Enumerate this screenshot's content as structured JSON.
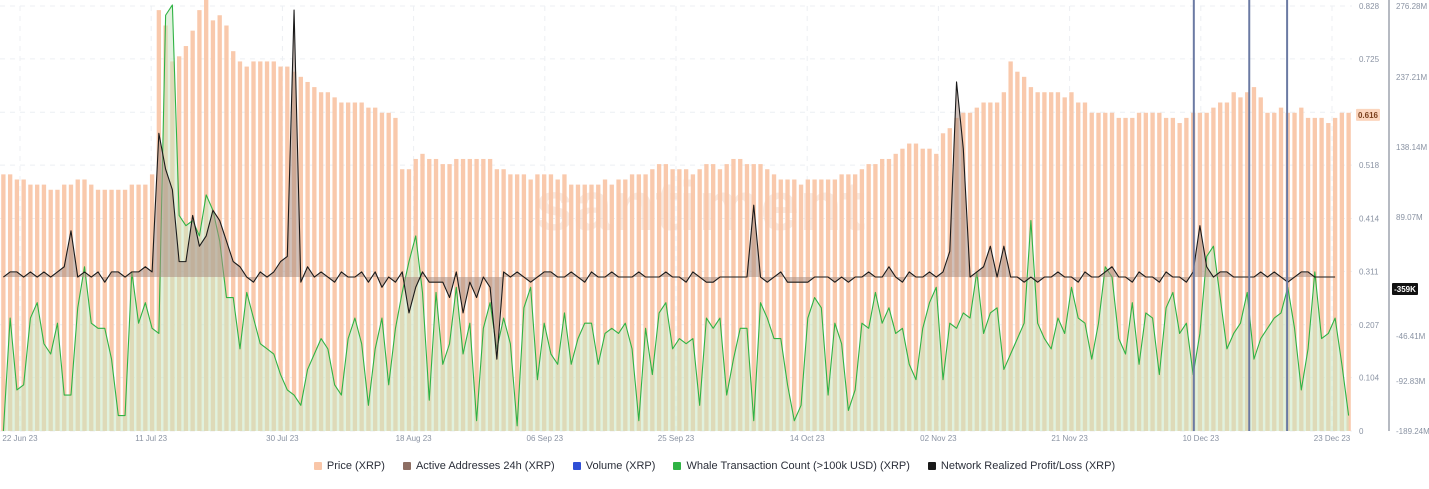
{
  "chart_data": {
    "type": "bar",
    "watermark": "santiment",
    "x_tick_labels": [
      "22 Jun 23",
      "11 Jul 23",
      "30 Jul 23",
      "18 Aug 23",
      "06 Sep 23",
      "25 Sep 23",
      "14 Oct 23",
      "02 Nov 23",
      "21 Nov 23",
      "10 Dec 23",
      "23 Dec 23"
    ],
    "price_axis": {
      "ticks": [
        "0",
        "0.104",
        "0.207",
        "0.311",
        "0.414",
        "0.518",
        "0.621",
        "0.725",
        "0.828"
      ],
      "ylim": [
        0,
        0.828
      ]
    },
    "right_axis": {
      "ticks": [
        "-189.24M",
        "-92.83M",
        "-46.41M",
        "89.07M",
        "138.14M",
        "237.21M",
        "276.28M"
      ]
    },
    "price_current_label": "0.616",
    "profit_loss_current_label": "-359K",
    "legend_placement": "bottom-center",
    "grid": true,
    "colors": {
      "price": "#f9c6a8",
      "active_addresses": "#8d6e63",
      "volume": "#2f4fd6",
      "whale": "#2fb344",
      "profit_loss": "#1a1a1a",
      "event_line": "#6b7aa3"
    },
    "legend": [
      {
        "key": "price",
        "label": "Price (XRP)"
      },
      {
        "key": "active_addresses",
        "label": "Active Addresses 24h (XRP)"
      },
      {
        "key": "volume",
        "label": "Volume (XRP)"
      },
      {
        "key": "whale",
        "label": "Whale Transaction Count (>100k USD) (XRP)"
      },
      {
        "key": "profit_loss",
        "label": "Network Realized Profit/Loss (XRP)"
      }
    ],
    "series": [
      {
        "name": "Price (XRP)",
        "type": "bar",
        "values": [
          0.5,
          0.5,
          0.49,
          0.49,
          0.48,
          0.48,
          0.48,
          0.47,
          0.47,
          0.48,
          0.48,
          0.49,
          0.49,
          0.48,
          0.47,
          0.47,
          0.47,
          0.47,
          0.47,
          0.48,
          0.48,
          0.48,
          0.5,
          0.82,
          0.79,
          0.72,
          0.73,
          0.75,
          0.78,
          0.82,
          0.84,
          0.8,
          0.81,
          0.79,
          0.74,
          0.72,
          0.71,
          0.72,
          0.72,
          0.72,
          0.72,
          0.71,
          0.71,
          0.7,
          0.69,
          0.68,
          0.67,
          0.66,
          0.66,
          0.65,
          0.64,
          0.64,
          0.64,
          0.64,
          0.63,
          0.63,
          0.62,
          0.62,
          0.61,
          0.51,
          0.51,
          0.53,
          0.54,
          0.53,
          0.53,
          0.52,
          0.52,
          0.53,
          0.53,
          0.53,
          0.53,
          0.53,
          0.53,
          0.51,
          0.51,
          0.5,
          0.5,
          0.5,
          0.49,
          0.5,
          0.5,
          0.5,
          0.49,
          0.5,
          0.48,
          0.48,
          0.48,
          0.48,
          0.48,
          0.49,
          0.48,
          0.49,
          0.49,
          0.5,
          0.5,
          0.5,
          0.51,
          0.52,
          0.52,
          0.51,
          0.51,
          0.51,
          0.5,
          0.51,
          0.52,
          0.52,
          0.51,
          0.52,
          0.53,
          0.53,
          0.52,
          0.52,
          0.52,
          0.51,
          0.5,
          0.49,
          0.49,
          0.49,
          0.48,
          0.49,
          0.49,
          0.49,
          0.49,
          0.49,
          0.5,
          0.5,
          0.5,
          0.51,
          0.52,
          0.52,
          0.53,
          0.53,
          0.54,
          0.55,
          0.56,
          0.56,
          0.55,
          0.55,
          0.54,
          0.58,
          0.59,
          0.61,
          0.62,
          0.62,
          0.63,
          0.64,
          0.64,
          0.64,
          0.66,
          0.72,
          0.7,
          0.69,
          0.67,
          0.66,
          0.66,
          0.66,
          0.66,
          0.65,
          0.66,
          0.64,
          0.64,
          0.62,
          0.62,
          0.62,
          0.62,
          0.61,
          0.61,
          0.61,
          0.62,
          0.62,
          0.62,
          0.62,
          0.61,
          0.61,
          0.6,
          0.61,
          0.62,
          0.62,
          0.62,
          0.63,
          0.64,
          0.64,
          0.66,
          0.65,
          0.66,
          0.67,
          0.65,
          0.62,
          0.62,
          0.63,
          0.62,
          0.62,
          0.63,
          0.61,
          0.61,
          0.61,
          0.6,
          0.61,
          0.62,
          0.62
        ],
        "ylim": [
          0,
          0.828
        ]
      },
      {
        "name": "Whale Transaction Count (>100k USD) (XRP)",
        "type": "line",
        "values": [
          0,
          0.22,
          0.08,
          0.09,
          0.22,
          0.25,
          0.17,
          0.15,
          0.21,
          0.07,
          0.07,
          0.24,
          0.32,
          0.21,
          0.2,
          0.2,
          0.14,
          0.03,
          0.03,
          0.31,
          0.21,
          0.25,
          0.2,
          0.19,
          0.81,
          0.83,
          0.42,
          0.4,
          0.41,
          0.38,
          0.46,
          0.43,
          0.37,
          0.26,
          0.26,
          0.16,
          0.27,
          0.22,
          0.17,
          0.16,
          0.15,
          0.11,
          0.08,
          0.07,
          0.05,
          0.12,
          0.15,
          0.18,
          0.16,
          0.09,
          0.07,
          0.18,
          0.22,
          0.17,
          0.05,
          0.16,
          0.22,
          0.09,
          0.2,
          0.27,
          0.33,
          0.38,
          0.27,
          0.06,
          0.27,
          0.13,
          0.17,
          0.28,
          0.15,
          0.21,
          0.02,
          0.2,
          0.25,
          0.16,
          0.22,
          0.17,
          0.01,
          0.24,
          0.28,
          0.1,
          0.21,
          0.15,
          0.13,
          0.23,
          0.13,
          0.18,
          0.21,
          0.21,
          0.13,
          0.19,
          0.2,
          0.19,
          0.21,
          0.16,
          0.02,
          0.2,
          0.11,
          0.23,
          0.25,
          0.16,
          0.18,
          0.17,
          0.18,
          0.05,
          0.22,
          0.2,
          0.22,
          0.07,
          0.14,
          0.2,
          0.2,
          0.02,
          0.25,
          0.22,
          0.18,
          0.18,
          0.09,
          0.02,
          0.05,
          0.22,
          0.26,
          0.24,
          0.07,
          0.21,
          0.17,
          0.04,
          0.08,
          0.21,
          0.2,
          0.27,
          0.21,
          0.24,
          0.19,
          0.2,
          0.13,
          0.1,
          0.2,
          0.25,
          0.28,
          0.1,
          0.21,
          0.2,
          0.23,
          0.22,
          0.31,
          0.19,
          0.23,
          0.24,
          0.12,
          0.15,
          0.18,
          0.21,
          0.41,
          0.21,
          0.18,
          0.16,
          0.22,
          0.19,
          0.28,
          0.22,
          0.21,
          0.14,
          0.21,
          0.32,
          0.3,
          0.18,
          0.15,
          0.25,
          0.13,
          0.23,
          0.22,
          0.11,
          0.24,
          0.27,
          0.19,
          0.21,
          0.11,
          0.19,
          0.34,
          0.36,
          0.26,
          0.16,
          0.19,
          0.21,
          0.27,
          0.14,
          0.18,
          0.2,
          0.22,
          0.23,
          0.28,
          0.2,
          0.08,
          0.16,
          0.31,
          0.18,
          0.19,
          0.22,
          0.13,
          0.03
        ],
        "ylim": [
          0,
          0.828
        ]
      },
      {
        "name": "Network Realized Profit/Loss (XRP)",
        "type": "line",
        "values": [
          0.3,
          0.31,
          0.31,
          0.3,
          0.31,
          0.3,
          0.31,
          0.3,
          0.31,
          0.32,
          0.39,
          0.3,
          0.31,
          0.3,
          0.31,
          0.29,
          0.31,
          0.31,
          0.3,
          0.31,
          0.31,
          0.32,
          0.31,
          0.58,
          0.51,
          0.47,
          0.33,
          0.33,
          0.42,
          0.36,
          0.38,
          0.43,
          0.41,
          0.37,
          0.33,
          0.32,
          0.3,
          0.29,
          0.31,
          0.3,
          0.31,
          0.33,
          0.34,
          0.82,
          0.29,
          0.32,
          0.3,
          0.31,
          0.3,
          0.29,
          0.31,
          0.3,
          0.3,
          0.31,
          0.29,
          0.31,
          0.28,
          0.3,
          0.29,
          0.31,
          0.23,
          0.28,
          0.31,
          0.29,
          0.29,
          0.29,
          0.26,
          0.31,
          0.23,
          0.29,
          0.26,
          0.3,
          0.28,
          0.14,
          0.31,
          0.3,
          0.31,
          0.3,
          0.29,
          0.3,
          0.31,
          0.31,
          0.3,
          0.3,
          0.31,
          0.3,
          0.29,
          0.31,
          0.3,
          0.3,
          0.31,
          0.3,
          0.3,
          0.3,
          0.31,
          0.3,
          0.3,
          0.3,
          0.31,
          0.3,
          0.3,
          0.29,
          0.31,
          0.3,
          0.29,
          0.29,
          0.3,
          0.3,
          0.3,
          0.3,
          0.3,
          0.44,
          0.3,
          0.29,
          0.3,
          0.31,
          0.29,
          0.29,
          0.29,
          0.29,
          0.3,
          0.3,
          0.3,
          0.29,
          0.3,
          0.29,
          0.3,
          0.3,
          0.31,
          0.3,
          0.3,
          0.32,
          0.3,
          0.29,
          0.31,
          0.3,
          0.3,
          0.31,
          0.3,
          0.31,
          0.35,
          0.68,
          0.55,
          0.3,
          0.31,
          0.32,
          0.36,
          0.3,
          0.36,
          0.3,
          0.3,
          0.29,
          0.3,
          0.29,
          0.3,
          0.3,
          0.31,
          0.3,
          0.3,
          0.29,
          0.31,
          0.3,
          0.3,
          0.31,
          0.32,
          0.3,
          0.3,
          0.29,
          0.31,
          0.3,
          0.3,
          0.29,
          0.31,
          0.3,
          0.3,
          0.29,
          0.31,
          0.4,
          0.32,
          0.3,
          0.31,
          0.31,
          0.3,
          0.3,
          0.3,
          0.3,
          0.31,
          0.3,
          0.31,
          0.3,
          0.29,
          0.3,
          0.31,
          0.31,
          0.3,
          0.3,
          0.3,
          0.3
        ],
        "ylim": [
          0,
          0.828
        ]
      }
    ],
    "event_line_positions": [
      0.883,
      0.924,
      0.952
    ]
  }
}
